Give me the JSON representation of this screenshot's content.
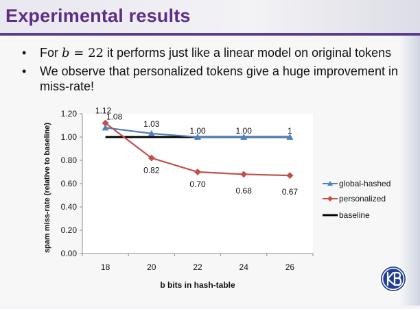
{
  "slide": {
    "title": "Experimental results",
    "bullets": [
      {
        "prefix": "For ",
        "math_var": "b",
        "math_rest": " = 22",
        "suffix": " it performs just like a linear model on original tokens"
      },
      {
        "text": "We observe that personalized tokens give a huge improvement in miss-rate!"
      }
    ],
    "bullet_glyph": "•"
  },
  "logo": {
    "icon": "university-logo-icon",
    "colors": [
      "#1f3e8f",
      "#ffffff"
    ]
  },
  "chart_data": {
    "type": "line",
    "xlabel": "b bits in hash-table",
    "ylabel": "spam miss-rate (relative to baseline)",
    "x": [
      18,
      20,
      22,
      24,
      26
    ],
    "ylim": [
      0.0,
      1.2
    ],
    "yticks": [
      "0.00",
      "0.20",
      "0.40",
      "0.60",
      "0.80",
      "1.00",
      "1.20"
    ],
    "grid": false,
    "legend_position": "right",
    "series": [
      {
        "name": "global-hashed",
        "values": [
          1.08,
          1.03,
          1.0,
          1.0,
          1.0
        ],
        "labels": [
          "1.08",
          "1.03",
          "1.00",
          "1.00",
          "1"
        ],
        "color": "#4f81bd",
        "marker": "triangle"
      },
      {
        "name": "personalized",
        "values": [
          1.12,
          0.82,
          0.7,
          0.68,
          0.67
        ],
        "labels": [
          "1.12",
          "0.82",
          "0.70",
          "0.68",
          "0.67"
        ],
        "color": "#c0504d",
        "marker": "diamond"
      },
      {
        "name": "baseline",
        "values": [
          1.0,
          1.0,
          1.0,
          1.0,
          1.0
        ],
        "labels": [],
        "color": "#000000",
        "marker": "none"
      }
    ]
  }
}
